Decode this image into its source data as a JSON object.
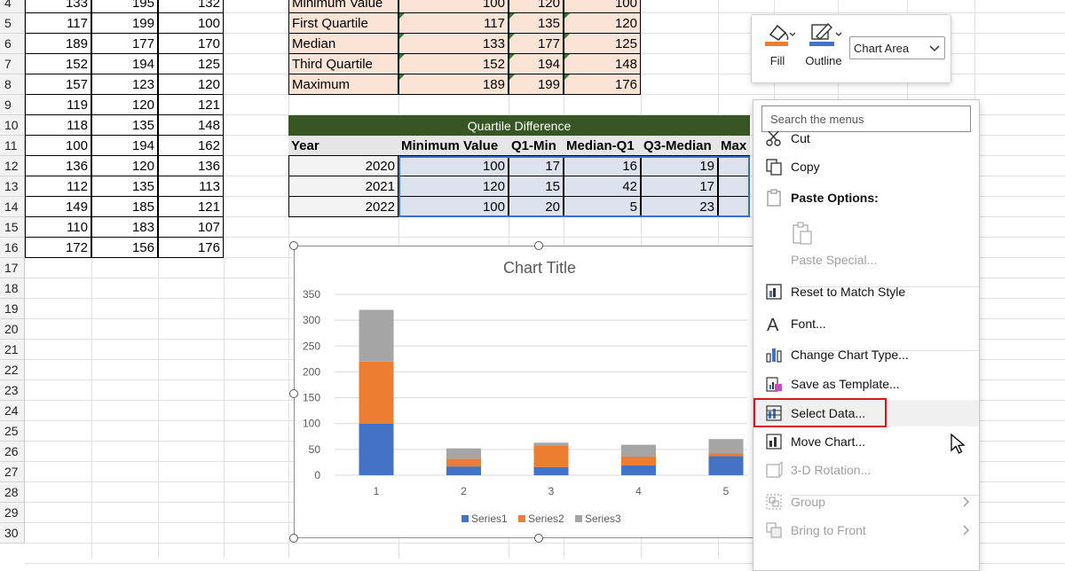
{
  "rows": [
    "4",
    "5",
    "6",
    "7",
    "8",
    "9",
    "10",
    "11",
    "12",
    "13",
    "14",
    "15",
    "16",
    "17",
    "18",
    "19",
    "20",
    "21",
    "22",
    "23",
    "24",
    "25",
    "26",
    "27",
    "28",
    "29",
    "30"
  ],
  "left_table": [
    [
      "133",
      "195",
      "132"
    ],
    [
      "117",
      "199",
      "100"
    ],
    [
      "189",
      "177",
      "170"
    ],
    [
      "152",
      "194",
      "125"
    ],
    [
      "157",
      "123",
      "120"
    ],
    [
      "119",
      "120",
      "121"
    ],
    [
      "118",
      "135",
      "148"
    ],
    [
      "100",
      "194",
      "162"
    ],
    [
      "136",
      "120",
      "136"
    ],
    [
      "112",
      "135",
      "113"
    ],
    [
      "149",
      "185",
      "121"
    ],
    [
      "110",
      "183",
      "107"
    ],
    [
      "172",
      "156",
      "176"
    ]
  ],
  "stats_table": [
    {
      "label": "Minimum Value",
      "values": [
        "100",
        "120",
        "100"
      ]
    },
    {
      "label": "First Quartile",
      "values": [
        "117",
        "135",
        "120"
      ]
    },
    {
      "label": "Median",
      "values": [
        "133",
        "177",
        "125"
      ]
    },
    {
      "label": "Third Quartile",
      "values": [
        "152",
        "194",
        "148"
      ]
    },
    {
      "label": "Maximum",
      "values": [
        "189",
        "199",
        "176"
      ]
    }
  ],
  "quartile_table": {
    "title": "Quartile Difference",
    "headers": [
      "Year",
      "Minimum Value",
      "Q1-Min",
      "Median-Q1",
      "Q3-Median",
      "Max"
    ],
    "rows": [
      {
        "year": "2020",
        "values": [
          "100",
          "17",
          "16",
          "19"
        ]
      },
      {
        "year": "2021",
        "values": [
          "120",
          "15",
          "42",
          "17"
        ]
      },
      {
        "year": "2022",
        "values": [
          "100",
          "20",
          "5",
          "23"
        ]
      }
    ]
  },
  "chart_data": {
    "type": "bar",
    "stacked": true,
    "title": "Chart Title",
    "categories": [
      "1",
      "2",
      "3",
      "4",
      "5"
    ],
    "series": [
      {
        "name": "Series1",
        "color": "#4472c4",
        "values": [
          100,
          17,
          16,
          19,
          37
        ]
      },
      {
        "name": "Series2",
        "color": "#ed7d31",
        "values": [
          120,
          15,
          42,
          17,
          5
        ]
      },
      {
        "name": "Series3",
        "color": "#a5a5a5",
        "values": [
          100,
          20,
          5,
          23,
          28
        ]
      }
    ],
    "ylim": [
      0,
      350
    ],
    "yticks": [
      "0",
      "50",
      "100",
      "150",
      "200",
      "250",
      "300",
      "350"
    ],
    "grid": true,
    "legend": "bottom"
  },
  "mini_toolbar": {
    "fill_label": "Fill",
    "outline_label": "Outline",
    "element_select": "Chart Area",
    "fill_color": "#ed7d31",
    "outline_color": "#4472c4"
  },
  "context_menu": {
    "search_placeholder": "Search the menus",
    "items": [
      {
        "label": "Cut",
        "icon": "scissors-icon",
        "disabled": false
      },
      {
        "label": "Copy",
        "icon": "copy-icon",
        "disabled": false
      },
      {
        "label": "Paste Options:",
        "icon": "paste-icon",
        "disabled": false
      },
      {
        "label": "Paste Special...",
        "icon": "",
        "disabled": true
      },
      {
        "label": "Reset to Match Style",
        "icon": "reset-style-icon",
        "disabled": false
      },
      {
        "label": "Font...",
        "icon": "font-icon",
        "disabled": false
      },
      {
        "label": "Change Chart Type...",
        "icon": "chart-type-icon",
        "disabled": false
      },
      {
        "label": "Save as Template...",
        "icon": "template-icon",
        "disabled": false
      },
      {
        "label": "Select Data...",
        "icon": "select-data-icon",
        "disabled": false,
        "highlighted": true
      },
      {
        "label": "Move Chart...",
        "icon": "move-chart-icon",
        "disabled": false
      },
      {
        "label": "3-D Rotation...",
        "icon": "rotation-icon",
        "disabled": true
      },
      {
        "label": "Group",
        "icon": "group-icon",
        "disabled": true
      },
      {
        "label": "Bring to Front",
        "icon": "bring-front-icon",
        "disabled": true
      }
    ]
  }
}
